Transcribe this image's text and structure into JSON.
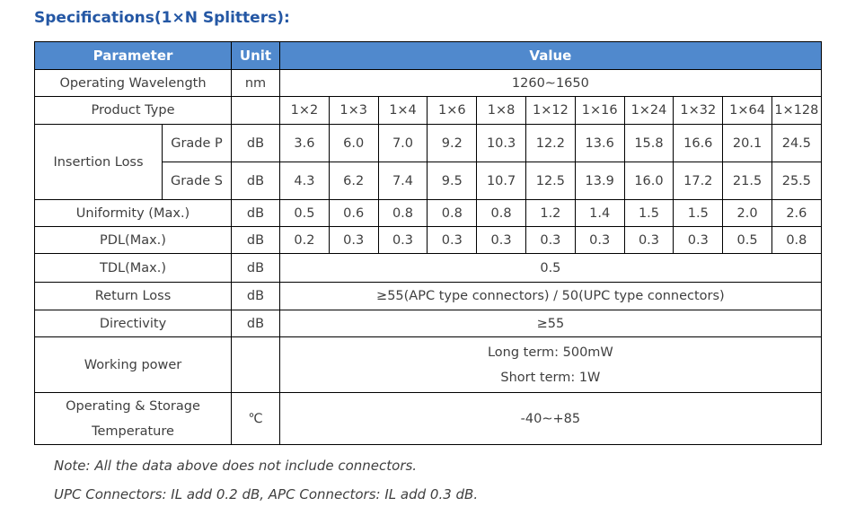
{
  "title": "Specifications(1×N Splitters):",
  "colors": {
    "header_bg": "#5089CD",
    "title_text": "#2457A4",
    "table_border": "#000000",
    "body_text": "#3f3f3f"
  },
  "table": {
    "headers": {
      "parameter": "Parameter",
      "unit": "Unit",
      "value": "Value"
    },
    "product_types": [
      "1×2",
      "1×3",
      "1×4",
      "1×6",
      "1×8",
      "1×12",
      "1×16",
      "1×24",
      "1×32",
      "1×64",
      "1×128"
    ],
    "rows": {
      "operating_wavelength": {
        "label": "Operating Wavelength",
        "unit": "nm",
        "value": "1260∼1650"
      },
      "product_type": {
        "label": "Product Type",
        "unit": ""
      },
      "insertion_loss": {
        "label": "Insertion Loss",
        "grade_p": {
          "label": "Grade P",
          "unit": "dB",
          "values": [
            "3.6",
            "6.0",
            "7.0",
            "9.2",
            "10.3",
            "12.2",
            "13.6",
            "15.8",
            "16.6",
            "20.1",
            "24.5"
          ]
        },
        "grade_s": {
          "label": "Grade S",
          "unit": "dB",
          "values": [
            "4.3",
            "6.2",
            "7.4",
            "9.5",
            "10.7",
            "12.5",
            "13.9",
            "16.0",
            "17.2",
            "21.5",
            "25.5"
          ]
        }
      },
      "uniformity": {
        "label": "Uniformity (Max.)",
        "unit": "dB",
        "values": [
          "0.5",
          "0.6",
          "0.8",
          "0.8",
          "0.8",
          "1.2",
          "1.4",
          "1.5",
          "1.5",
          "2.0",
          "2.6"
        ]
      },
      "pdl": {
        "label": "PDL(Max.)",
        "unit": "dB",
        "values": [
          "0.2",
          "0.3",
          "0.3",
          "0.3",
          "0.3",
          "0.3",
          "0.3",
          "0.3",
          "0.3",
          "0.5",
          "0.8"
        ]
      },
      "tdl": {
        "label": "TDL(Max.)",
        "unit": "dB",
        "value": "0.5"
      },
      "return_loss": {
        "label": "Return Loss",
        "unit": "dB",
        "value": "≥55(APC type connectors) / 50(UPC type connectors)"
      },
      "directivity": {
        "label": "Directivity",
        "unit": "dB",
        "value": "≥55"
      },
      "working_power": {
        "label": "Working power",
        "unit": "",
        "value_line1": "Long term: 500mW",
        "value_line2": "Short term: 1W"
      },
      "temperature": {
        "label_line1": "Operating & Storage",
        "label_line2": "Temperature",
        "unit": "℃",
        "value": "-40∼+85"
      }
    }
  },
  "notes": {
    "line1": "Note: All the data above does not include connectors.",
    "line2": "UPC Connectors: IL add 0.2 dB, APC Connectors: IL add 0.3 dB."
  }
}
